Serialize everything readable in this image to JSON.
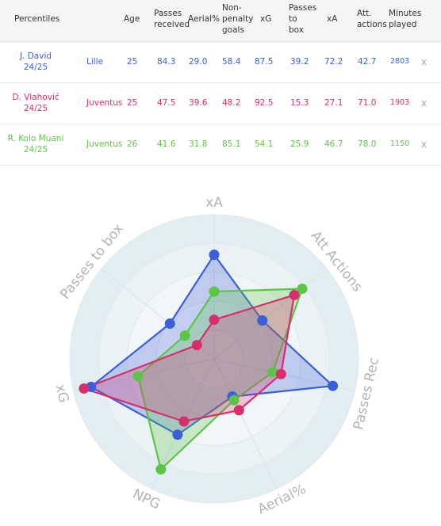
{
  "table": {
    "headers": {
      "percentiles": "Percentiles",
      "age": "Age",
      "passes_received": "Passes\nreceived",
      "aerial": "Aerial%",
      "npg": "Non-\npenalty\ngoals",
      "xg": "xG",
      "passes_to_box": "Passes\nto\nbox",
      "xa": "xA",
      "att_actions": "Att.\nactions",
      "minutes": "Minutes\nplayed"
    },
    "rows": [
      {
        "player": "J. David\n24/25",
        "team": "Lille",
        "age": "25",
        "passes_received": "84.3",
        "aerial": "29.0",
        "npg": "58.4",
        "xg": "87.5",
        "passes_to_box": "39.2",
        "xa": "72.2",
        "att_actions": "42.7",
        "minutes": "2803",
        "remove": "x",
        "color": "#3a5fd9"
      },
      {
        "player": "D. Vlahović\n24/25",
        "team": "Juventus",
        "age": "25",
        "passes_received": "47.5",
        "aerial": "39.6",
        "npg": "48.2",
        "xg": "92.5",
        "passes_to_box": "15.3",
        "xa": "27.1",
        "att_actions": "71.0",
        "minutes": "1903",
        "remove": "x",
        "color": "#d62f6b"
      },
      {
        "player": "R. Kolo Muani\n24/25",
        "team": "Juventus",
        "age": "26",
        "passes_received": "41.6",
        "aerial": "31.8",
        "npg": "85.1",
        "xg": "54.1",
        "passes_to_box": "25.9",
        "xa": "46.7",
        "att_actions": "78.0",
        "minutes": "1150",
        "remove": "x",
        "color": "#5dc545"
      }
    ]
  },
  "chart_data": {
    "type": "radar",
    "axes": [
      "xA",
      "Att Actions",
      "Passes Rec",
      "Aerial%",
      "NPG",
      "xG",
      "Passes to box"
    ],
    "range": [
      0,
      100
    ],
    "series": [
      {
        "name": "J. David",
        "color": "#3a5fd9",
        "values": [
          72.2,
          42.7,
          84.3,
          29.0,
          58.4,
          87.5,
          39.2
        ]
      },
      {
        "name": "D. Vlahović",
        "color": "#d62f6b",
        "values": [
          27.1,
          71.0,
          47.5,
          39.6,
          48.2,
          92.5,
          15.3
        ]
      },
      {
        "name": "R. Kolo Muani",
        "color": "#5dc545",
        "values": [
          46.7,
          78.0,
          41.6,
          31.8,
          85.1,
          54.1,
          25.9
        ]
      }
    ]
  }
}
